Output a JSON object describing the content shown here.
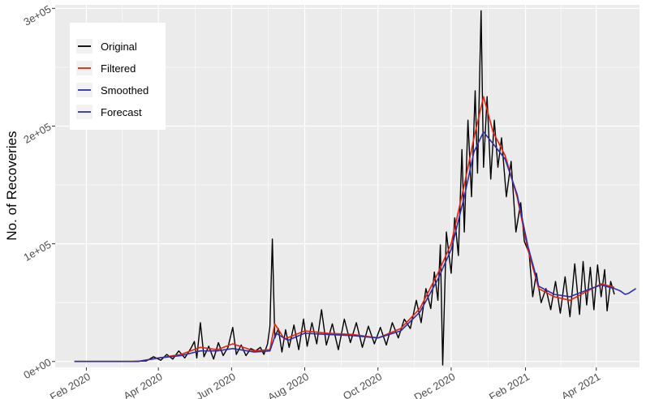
{
  "chart_data": {
    "type": "line",
    "ylabel": "No. of Recoveries",
    "xlabel": "",
    "title": "",
    "x_scale": "date",
    "xlim": [
      "2020-01-06",
      "2021-05-07"
    ],
    "ylim": [
      -5000,
      303000
    ],
    "x_ticks": [
      {
        "date": "2020-02-01",
        "label": "Feb 2020"
      },
      {
        "date": "2020-04-01",
        "label": "Apr 2020"
      },
      {
        "date": "2020-06-01",
        "label": "Jun 2020"
      },
      {
        "date": "2020-08-01",
        "label": "Aug 2020"
      },
      {
        "date": "2020-10-01",
        "label": "Oct 2020"
      },
      {
        "date": "2020-12-01",
        "label": "Dec 2020"
      },
      {
        "date": "2021-02-01",
        "label": "Feb 2021"
      },
      {
        "date": "2021-04-01",
        "label": "Apr 2021"
      }
    ],
    "y_ticks": [
      {
        "value": 0,
        "label": "0e+00"
      },
      {
        "value": 100000,
        "label": "1e+05"
      },
      {
        "value": 200000,
        "label": "2e+05"
      },
      {
        "value": 300000,
        "label": "3e+05"
      }
    ],
    "grid": true,
    "legend_position": "top-left",
    "series": [
      {
        "name": "Original",
        "color": "#000000",
        "points": [
          [
            "2020-01-22",
            0
          ],
          [
            "2020-02-15",
            0
          ],
          [
            "2020-03-10",
            0
          ],
          [
            "2020-03-22",
            500
          ],
          [
            "2020-03-28",
            4000
          ],
          [
            "2020-04-03",
            1000
          ],
          [
            "2020-04-08",
            6000
          ],
          [
            "2020-04-13",
            2000
          ],
          [
            "2020-04-18",
            9000
          ],
          [
            "2020-04-23",
            3000
          ],
          [
            "2020-04-28",
            11000
          ],
          [
            "2020-05-01",
            17000
          ],
          [
            "2020-05-03",
            3000
          ],
          [
            "2020-05-06",
            33000
          ],
          [
            "2020-05-09",
            4000
          ],
          [
            "2020-05-13",
            13000
          ],
          [
            "2020-05-17",
            2000
          ],
          [
            "2020-05-21",
            16000
          ],
          [
            "2020-05-25",
            5000
          ],
          [
            "2020-05-29",
            12000
          ],
          [
            "2020-06-02",
            29000
          ],
          [
            "2020-06-05",
            6000
          ],
          [
            "2020-06-09",
            14000
          ],
          [
            "2020-06-13",
            5000
          ],
          [
            "2020-06-17",
            11000
          ],
          [
            "2020-06-21",
            9000
          ],
          [
            "2020-06-25",
            12000
          ],
          [
            "2020-06-28",
            6000
          ],
          [
            "2020-07-01",
            15000
          ],
          [
            "2020-07-03",
            30000
          ],
          [
            "2020-07-05",
            104000
          ],
          [
            "2020-07-07",
            20000
          ],
          [
            "2020-07-10",
            28000
          ],
          [
            "2020-07-13",
            8000
          ],
          [
            "2020-07-16",
            27000
          ],
          [
            "2020-07-19",
            12000
          ],
          [
            "2020-07-23",
            31000
          ],
          [
            "2020-07-27",
            10000
          ],
          [
            "2020-07-31",
            36000
          ],
          [
            "2020-08-03",
            13000
          ],
          [
            "2020-08-07",
            33000
          ],
          [
            "2020-08-11",
            15000
          ],
          [
            "2020-08-15",
            44000
          ],
          [
            "2020-08-19",
            14000
          ],
          [
            "2020-08-24",
            32000
          ],
          [
            "2020-08-29",
            10000
          ],
          [
            "2020-09-03",
            36000
          ],
          [
            "2020-09-08",
            16000
          ],
          [
            "2020-09-13",
            33000
          ],
          [
            "2020-09-18",
            12000
          ],
          [
            "2020-09-23",
            30000
          ],
          [
            "2020-09-28",
            15000
          ],
          [
            "2020-10-03",
            29000
          ],
          [
            "2020-10-08",
            14000
          ],
          [
            "2020-10-13",
            33000
          ],
          [
            "2020-10-18",
            20000
          ],
          [
            "2020-10-23",
            36000
          ],
          [
            "2020-10-28",
            28000
          ],
          [
            "2020-11-02",
            52000
          ],
          [
            "2020-11-06",
            33000
          ],
          [
            "2020-11-10",
            62000
          ],
          [
            "2020-11-14",
            45000
          ],
          [
            "2020-11-17",
            76000
          ],
          [
            "2020-11-20",
            52000
          ],
          [
            "2020-11-22",
            99000
          ],
          [
            "2020-11-24",
            -3000
          ],
          [
            "2020-11-27",
            110000
          ],
          [
            "2020-12-01",
            75000
          ],
          [
            "2020-12-04",
            122000
          ],
          [
            "2020-12-07",
            90000
          ],
          [
            "2020-12-10",
            180000
          ],
          [
            "2020-12-12",
            110000
          ],
          [
            "2020-12-15",
            205000
          ],
          [
            "2020-12-18",
            140000
          ],
          [
            "2020-12-21",
            230000
          ],
          [
            "2020-12-23",
            160000
          ],
          [
            "2020-12-26",
            298000
          ],
          [
            "2020-12-28",
            165000
          ],
          [
            "2020-12-31",
            225000
          ],
          [
            "2021-01-03",
            155000
          ],
          [
            "2021-01-06",
            205000
          ],
          [
            "2021-01-09",
            165000
          ],
          [
            "2021-01-12",
            190000
          ],
          [
            "2021-01-16",
            140000
          ],
          [
            "2021-01-20",
            170000
          ],
          [
            "2021-01-24",
            110000
          ],
          [
            "2021-01-28",
            135000
          ],
          [
            "2021-01-31",
            102000
          ],
          [
            "2021-02-04",
            92000
          ],
          [
            "2021-02-07",
            55000
          ],
          [
            "2021-02-10",
            75000
          ],
          [
            "2021-02-14",
            50000
          ],
          [
            "2021-02-18",
            62000
          ],
          [
            "2021-02-22",
            44000
          ],
          [
            "2021-02-26",
            68000
          ],
          [
            "2021-03-02",
            41000
          ],
          [
            "2021-03-06",
            72000
          ],
          [
            "2021-03-10",
            38000
          ],
          [
            "2021-03-14",
            83000
          ],
          [
            "2021-03-18",
            40000
          ],
          [
            "2021-03-21",
            85000
          ],
          [
            "2021-03-24",
            48000
          ],
          [
            "2021-03-27",
            80000
          ],
          [
            "2021-03-30",
            44000
          ],
          [
            "2021-04-02",
            82000
          ],
          [
            "2021-04-05",
            55000
          ],
          [
            "2021-04-08",
            78000
          ],
          [
            "2021-04-10",
            43000
          ],
          [
            "2021-04-13",
            68000
          ],
          [
            "2021-04-16",
            57000
          ]
        ]
      },
      {
        "name": "Filtered",
        "color": "#e8220c",
        "points": [
          [
            "2020-01-22",
            0
          ],
          [
            "2020-03-15",
            0
          ],
          [
            "2020-04-01",
            3000
          ],
          [
            "2020-04-20",
            6000
          ],
          [
            "2020-05-06",
            12000
          ],
          [
            "2020-05-20",
            10000
          ],
          [
            "2020-06-02",
            15000
          ],
          [
            "2020-06-20",
            9000
          ],
          [
            "2020-07-03",
            10000
          ],
          [
            "2020-07-07",
            32000
          ],
          [
            "2020-07-15",
            19000
          ],
          [
            "2020-08-01",
            26000
          ],
          [
            "2020-08-20",
            24000
          ],
          [
            "2020-09-10",
            23000
          ],
          [
            "2020-10-01",
            20000
          ],
          [
            "2020-10-20",
            28000
          ],
          [
            "2020-11-05",
            45000
          ],
          [
            "2020-11-20",
            75000
          ],
          [
            "2020-12-01",
            100000
          ],
          [
            "2020-12-12",
            150000
          ],
          [
            "2020-12-20",
            190000
          ],
          [
            "2020-12-28",
            225000
          ],
          [
            "2021-01-05",
            195000
          ],
          [
            "2021-01-15",
            175000
          ],
          [
            "2021-01-25",
            140000
          ],
          [
            "2021-02-03",
            95000
          ],
          [
            "2021-02-12",
            62000
          ],
          [
            "2021-02-25",
            55000
          ],
          [
            "2021-03-10",
            52000
          ],
          [
            "2021-03-25",
            60000
          ],
          [
            "2021-04-05",
            66000
          ],
          [
            "2021-04-16",
            63000
          ]
        ]
      },
      {
        "name": "Smoothed",
        "color": "#2e2ea8",
        "points": [
          [
            "2020-01-22",
            0
          ],
          [
            "2020-03-15",
            0
          ],
          [
            "2020-04-01",
            3000
          ],
          [
            "2020-04-20",
            5000
          ],
          [
            "2020-05-06",
            9000
          ],
          [
            "2020-05-20",
            9000
          ],
          [
            "2020-06-02",
            11000
          ],
          [
            "2020-06-20",
            8000
          ],
          [
            "2020-07-03",
            9000
          ],
          [
            "2020-07-08",
            24000
          ],
          [
            "2020-07-18",
            18000
          ],
          [
            "2020-08-01",
            24000
          ],
          [
            "2020-08-20",
            23000
          ],
          [
            "2020-09-10",
            22000
          ],
          [
            "2020-10-01",
            20000
          ],
          [
            "2020-10-20",
            26000
          ],
          [
            "2020-11-05",
            42000
          ],
          [
            "2020-11-20",
            70000
          ],
          [
            "2020-12-01",
            95000
          ],
          [
            "2020-12-12",
            140000
          ],
          [
            "2020-12-20",
            178000
          ],
          [
            "2020-12-28",
            195000
          ],
          [
            "2021-01-05",
            185000
          ],
          [
            "2021-01-15",
            172000
          ],
          [
            "2021-01-25",
            142000
          ],
          [
            "2021-02-03",
            98000
          ],
          [
            "2021-02-12",
            64000
          ],
          [
            "2021-02-25",
            57000
          ],
          [
            "2021-03-10",
            55000
          ],
          [
            "2021-03-25",
            61000
          ],
          [
            "2021-04-05",
            65000
          ],
          [
            "2021-04-16",
            62000
          ]
        ]
      },
      {
        "name": "Forecast",
        "color": "#2e2ea8",
        "points": [
          [
            "2021-04-16",
            62000
          ],
          [
            "2021-04-21",
            60000
          ],
          [
            "2021-04-25",
            57000
          ],
          [
            "2021-04-28",
            58000
          ],
          [
            "2021-05-01",
            60000
          ],
          [
            "2021-05-04",
            62000
          ]
        ]
      }
    ]
  }
}
